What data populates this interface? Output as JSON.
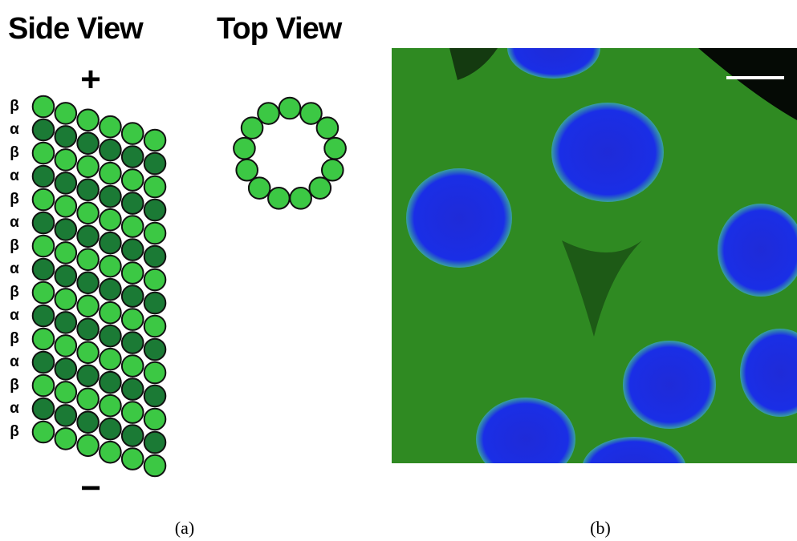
{
  "side_view": {
    "title": "Side View",
    "plus_end": "+",
    "minus_end": "−",
    "row_labels": [
      "β",
      "α",
      "β",
      "α",
      "β",
      "α",
      "β",
      "α",
      "β",
      "α",
      "β",
      "α",
      "β",
      "α",
      "β"
    ]
  },
  "top_view": {
    "title": "Top View"
  },
  "captions": {
    "a": "(a)",
    "b": "(b)"
  }
}
